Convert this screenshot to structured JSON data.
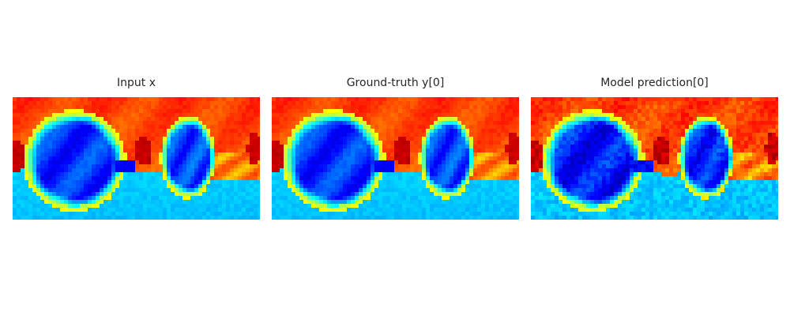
{
  "chart_data": [
    {
      "type": "heatmap",
      "title": "Input x",
      "colormap": "jet",
      "variant": "input",
      "axes_visible": false
    },
    {
      "type": "heatmap",
      "title": "Ground-truth y[0]",
      "colormap": "jet",
      "variant": "truth",
      "axes_visible": false
    },
    {
      "type": "heatmap",
      "title": "Model prediction[0]",
      "colormap": "jet",
      "variant": "prediction",
      "axes_visible": false
    }
  ]
}
